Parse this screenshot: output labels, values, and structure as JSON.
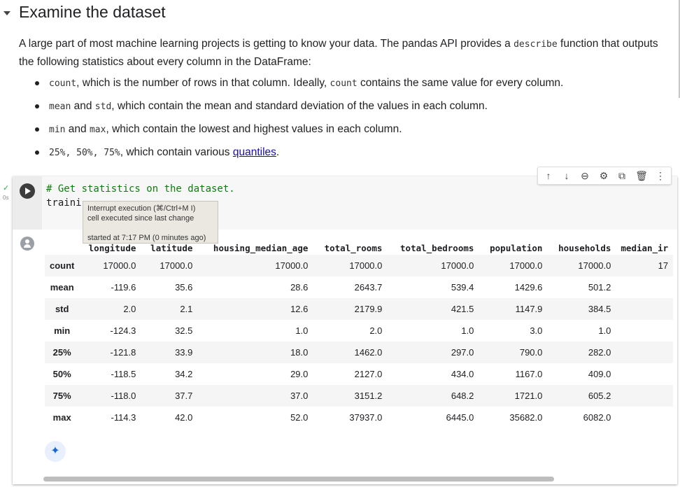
{
  "section": {
    "title": "Examine the dataset"
  },
  "intro": {
    "p1": "A large part of most machine learning projects is getting to know your data. The pandas API provides a ",
    "code": "describe",
    "p2": " function that outputs the following statistics about every column in the DataFrame:"
  },
  "bullets": [
    {
      "c1": "count",
      "t1": ", which is the number of rows in that column. Ideally, ",
      "c2": "count",
      "t2": " contains the same value for every column."
    },
    {
      "c1": "mean",
      "t1": " and ",
      "c2": "std",
      "t2": ", which contain the mean and standard deviation of the values in each column."
    },
    {
      "c1": "min",
      "t1": " and ",
      "c2": "max",
      "t2": ", which contain the lowest and highest values in each column."
    },
    {
      "c1": "25%, 50%, 75%",
      "t1": ", which contain various ",
      "link": "quantiles",
      "t2": "."
    }
  ],
  "cell": {
    "code_comment": "# Get statistics on the dataset.",
    "code_line2": "traini",
    "exec_time": "0s",
    "exec_status": "✓"
  },
  "tooltip": {
    "line1": "Interrupt execution (⌘/Ctrl+M I)",
    "line2": "cell executed since last change",
    "line3": "started at 7:17 PM (0 minutes ago)"
  },
  "toolbar": {
    "icons": [
      "arrow-up-icon",
      "arrow-down-icon",
      "link-icon",
      "gear-icon",
      "mirror-cell-icon",
      "delete-icon",
      "more-icon"
    ]
  },
  "table": {
    "columns": [
      "",
      "longitude",
      "latitude",
      "housing_median_age",
      "total_rooms",
      "total_bedrooms",
      "population",
      "households",
      "median_ir"
    ],
    "rows": [
      [
        "count",
        "17000.0",
        "17000.0",
        "17000.0",
        "17000.0",
        "17000.0",
        "17000.0",
        "17000.0",
        "17"
      ],
      [
        "mean",
        "-119.6",
        "35.6",
        "28.6",
        "2643.7",
        "539.4",
        "1429.6",
        "501.2",
        ""
      ],
      [
        "std",
        "2.0",
        "2.1",
        "12.6",
        "2179.9",
        "421.5",
        "1147.9",
        "384.5",
        ""
      ],
      [
        "min",
        "-124.3",
        "32.5",
        "1.0",
        "2.0",
        "1.0",
        "3.0",
        "1.0",
        ""
      ],
      [
        "25%",
        "-121.8",
        "33.9",
        "18.0",
        "1462.0",
        "297.0",
        "790.0",
        "282.0",
        ""
      ],
      [
        "50%",
        "-118.5",
        "34.2",
        "29.0",
        "2127.0",
        "434.0",
        "1167.0",
        "409.0",
        ""
      ],
      [
        "75%",
        "-118.0",
        "37.7",
        "37.0",
        "3151.2",
        "648.2",
        "1721.0",
        "605.2",
        ""
      ],
      [
        "max",
        "-114.3",
        "42.0",
        "52.0",
        "37937.0",
        "6445.0",
        "35682.0",
        "6082.0",
        ""
      ]
    ]
  },
  "colors": {
    "accent": "#1967d2",
    "link": "#1a0dab",
    "comment": "#0d7d0d",
    "exec_ok": "#34a853"
  }
}
